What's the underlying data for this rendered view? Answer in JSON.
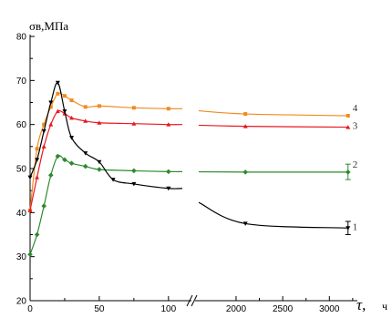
{
  "chart_data": {
    "type": "line",
    "title": "",
    "ylabel": "σв,МПа",
    "xlabel": "τ,",
    "xunit": "ч",
    "ylim": [
      20,
      80
    ],
    "yticks": [
      "20",
      "30",
      "40",
      "50",
      "60",
      "70",
      "80"
    ],
    "left_panel": {
      "xlim": [
        0,
        110
      ],
      "xticks": [
        "0",
        "50",
        "100"
      ]
    },
    "right_panel": {
      "xlim": [
        1600,
        3300
      ],
      "xticks": [
        "2000",
        "2500",
        "3000"
      ]
    },
    "axis_break": true,
    "grid": false,
    "series": [
      {
        "name": "4",
        "color": "#f28a1e",
        "points": [
          [
            0,
            40.5
          ],
          [
            5,
            54.5
          ],
          [
            10,
            60
          ],
          [
            15,
            64
          ],
          [
            20,
            67
          ],
          [
            25,
            66.5
          ],
          [
            30,
            65.5
          ],
          [
            40,
            64
          ],
          [
            50,
            64.2
          ],
          [
            75,
            63.8
          ],
          [
            100,
            63.6
          ],
          [
            2100,
            62.4
          ],
          [
            3200,
            62
          ]
        ]
      },
      {
        "name": "3",
        "color": "#e8181e",
        "points": [
          [
            0,
            40.5
          ],
          [
            5,
            48
          ],
          [
            10,
            55
          ],
          [
            15,
            60
          ],
          [
            20,
            63
          ],
          [
            25,
            62.5
          ],
          [
            30,
            61.5
          ],
          [
            40,
            60.8
          ],
          [
            50,
            60.4
          ],
          [
            75,
            60.2
          ],
          [
            100,
            60
          ],
          [
            2100,
            59.6
          ],
          [
            3200,
            59.4
          ]
        ]
      },
      {
        "name": "2",
        "color": "#2d8a2d",
        "points": [
          [
            0,
            30.5
          ],
          [
            5,
            35
          ],
          [
            10,
            41.5
          ],
          [
            15,
            48.5
          ],
          [
            20,
            52.8
          ],
          [
            25,
            52
          ],
          [
            30,
            51.2
          ],
          [
            40,
            50.5
          ],
          [
            50,
            49.8
          ],
          [
            75,
            49.5
          ],
          [
            100,
            49.3
          ],
          [
            2100,
            49.2
          ],
          [
            3200,
            49.2
          ]
        ],
        "error": {
          "x": 3200,
          "low": 47.5,
          "high": 51
        }
      },
      {
        "name": "1",
        "color": "#000000",
        "points": [
          [
            0,
            48
          ],
          [
            5,
            52
          ],
          [
            10,
            58.5
          ],
          [
            15,
            65
          ],
          [
            20,
            69.5
          ],
          [
            25,
            63
          ],
          [
            30,
            57
          ],
          [
            40,
            53.5
          ],
          [
            50,
            51.5
          ],
          [
            60,
            47.5
          ],
          [
            75,
            46.5
          ],
          [
            100,
            45.5
          ],
          [
            2100,
            37.5
          ],
          [
            3200,
            36.5
          ]
        ],
        "error": {
          "x": 3200,
          "low": 35,
          "high": 38
        }
      }
    ]
  }
}
